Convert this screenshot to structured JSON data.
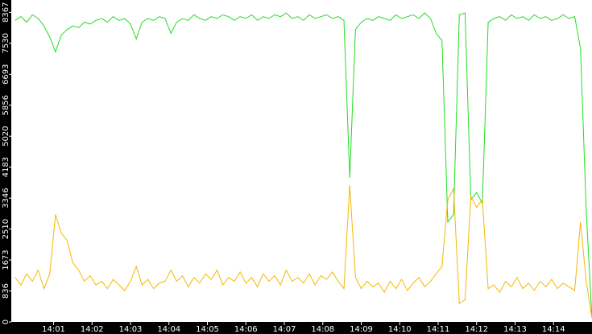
{
  "chart_data": {
    "type": "line",
    "x": [
      840.0,
      840.15,
      840.3,
      840.45,
      840.6,
      840.75,
      840.9,
      841.05,
      841.2,
      841.35,
      841.5,
      841.65,
      841.8,
      841.95,
      842.1,
      842.25,
      842.4,
      842.55,
      842.7,
      842.85,
      843.0,
      843.15,
      843.3,
      843.45,
      843.6,
      843.75,
      843.9,
      844.05,
      844.2,
      844.35,
      844.5,
      844.65,
      844.8,
      844.95,
      845.1,
      845.25,
      845.4,
      845.55,
      845.7,
      845.85,
      846.0,
      846.15,
      846.3,
      846.45,
      846.6,
      846.75,
      846.9,
      847.05,
      847.2,
      847.35,
      847.5,
      847.65,
      847.8,
      847.95,
      848.1,
      848.25,
      848.4,
      848.55,
      848.7,
      848.85,
      849.0,
      849.15,
      849.3,
      849.45,
      849.6,
      849.75,
      849.9,
      850.05,
      850.2,
      850.35,
      850.5,
      850.65,
      850.8,
      850.95,
      851.1,
      851.25,
      851.4,
      851.55,
      851.7,
      851.85,
      852.0,
      852.15,
      852.3,
      852.45,
      852.6,
      852.75,
      852.9,
      853.05,
      853.2,
      853.35,
      853.5,
      853.65,
      853.8,
      853.95,
      854.1,
      854.25,
      854.4,
      854.55,
      854.7,
      854.85,
      855.0
    ],
    "series": [
      {
        "color": "#22dd22",
        "values": [
          8150,
          8250,
          8100,
          8300,
          8200,
          8000,
          7700,
          7300,
          7750,
          7900,
          8000,
          7950,
          8100,
          8050,
          8150,
          8200,
          8100,
          8250,
          8150,
          8200,
          8050,
          7650,
          8100,
          8200,
          8150,
          8250,
          8200,
          7800,
          8100,
          8200,
          8150,
          8300,
          8200,
          8150,
          8250,
          8200,
          8300,
          8250,
          8150,
          8250,
          8200,
          8300,
          8150,
          8250,
          8200,
          8300,
          8250,
          8350,
          8200,
          8250,
          8150,
          8300,
          8200,
          8250,
          8300,
          8200,
          8250,
          8150,
          3900,
          7900,
          8100,
          8200,
          8150,
          8250,
          8200,
          8150,
          8300,
          8200,
          8250,
          8300,
          8200,
          8350,
          8200,
          7800,
          7600,
          2700,
          2900,
          8300,
          8350,
          3300,
          3500,
          3200,
          8100,
          8200,
          8250,
          8150,
          8300,
          8200,
          8250,
          8150,
          8300,
          8200,
          8250,
          8150,
          8200,
          8300,
          8200,
          8250,
          7400,
          3000,
          100
        ]
      },
      {
        "color": "#f5b800",
        "values": [
          1200,
          1000,
          1300,
          1100,
          1400,
          900,
          1300,
          2900,
          2400,
          2200,
          1600,
          1400,
          1100,
          1250,
          1000,
          1100,
          900,
          1150,
          1000,
          850,
          1100,
          1500,
          1000,
          1150,
          900,
          1050,
          1100,
          1400,
          1100,
          1250,
          950,
          1200,
          1050,
          1300,
          1150,
          1400,
          1000,
          1200,
          1100,
          1350,
          1050,
          1200,
          950,
          1300,
          1100,
          1250,
          1000,
          1400,
          1100,
          1200,
          1050,
          1300,
          1000,
          1250,
          1150,
          1350,
          1100,
          900,
          3700,
          1200,
          900,
          1100,
          950,
          1050,
          800,
          1100,
          900,
          1150,
          850,
          1050,
          1200,
          950,
          1100,
          1300,
          1500,
          3300,
          3600,
          500,
          600,
          3400,
          3100,
          3300,
          900,
          1000,
          800,
          1100,
          950,
          1200,
          900,
          1050,
          850,
          1100,
          950,
          1150,
          900,
          1050,
          950,
          850,
          2700,
          1100,
          100
        ]
      }
    ],
    "xlim": [
      839.9,
      855.0
    ],
    "ylim": [
      0,
      8700
    ],
    "yticks": [
      0,
      836,
      1673,
      2510,
      3346,
      4183,
      5020,
      5856,
      6693,
      7530,
      8367
    ],
    "xticks": [
      {
        "value": 841,
        "label": "14:01"
      },
      {
        "value": 842,
        "label": "14:02"
      },
      {
        "value": 843,
        "label": "14:03"
      },
      {
        "value": 844,
        "label": "14:04"
      },
      {
        "value": 845,
        "label": "14:05"
      },
      {
        "value": 846,
        "label": "14:06"
      },
      {
        "value": 847,
        "label": "14:07"
      },
      {
        "value": 848,
        "label": "14:08"
      },
      {
        "value": 849,
        "label": "14:09"
      },
      {
        "value": 850,
        "label": "14:10"
      },
      {
        "value": 851,
        "label": "14:11"
      },
      {
        "value": 852,
        "label": "14:12"
      },
      {
        "value": 853,
        "label": "14:13"
      },
      {
        "value": 854,
        "label": "14:14"
      }
    ]
  }
}
